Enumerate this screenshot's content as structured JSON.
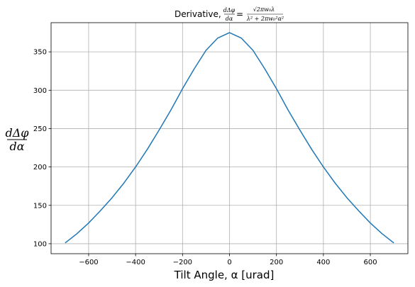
{
  "chart_data": {
    "type": "line",
    "title": {
      "prefix": "Derivative, ",
      "lhs_num": "dΔφ",
      "lhs_den": "dα",
      "equals": "=",
      "rhs_num": "√2πw₀λ",
      "rhs_den": "λ² + 2πw₀²α²"
    },
    "xlabel": "Tilt Angle, α [urad]",
    "ylabel": {
      "num": "dΔφ",
      "den": "dα"
    },
    "xlim": [
      -760,
      760
    ],
    "ylim": [
      87,
      388
    ],
    "x_ticks": [
      -600,
      -400,
      -200,
      0,
      200,
      400,
      600
    ],
    "x_tick_labels": [
      "−600",
      "−400",
      "−200",
      "0",
      "200",
      "400",
      "600"
    ],
    "y_ticks": [
      100,
      150,
      200,
      250,
      300,
      350
    ],
    "y_tick_labels": [
      "100",
      "150",
      "200",
      "250",
      "300",
      "350"
    ],
    "grid": true,
    "line_color": "#1f77b4",
    "series": [
      {
        "x": [
          -700,
          -650,
          -600,
          -550,
          -500,
          -450,
          -400,
          -350,
          -300,
          -250,
          -200,
          -150,
          -100,
          -50,
          0,
          50,
          100,
          150,
          200,
          250,
          300,
          350,
          400,
          450,
          500,
          550,
          600,
          650,
          700
        ],
        "values": [
          101,
          113,
          127,
          143,
          160,
          179,
          200,
          223,
          248,
          274,
          302,
          328,
          352,
          368,
          375,
          368,
          352,
          328,
          302,
          274,
          248,
          223,
          200,
          179,
          160,
          143,
          127,
          113,
          101
        ]
      }
    ]
  }
}
